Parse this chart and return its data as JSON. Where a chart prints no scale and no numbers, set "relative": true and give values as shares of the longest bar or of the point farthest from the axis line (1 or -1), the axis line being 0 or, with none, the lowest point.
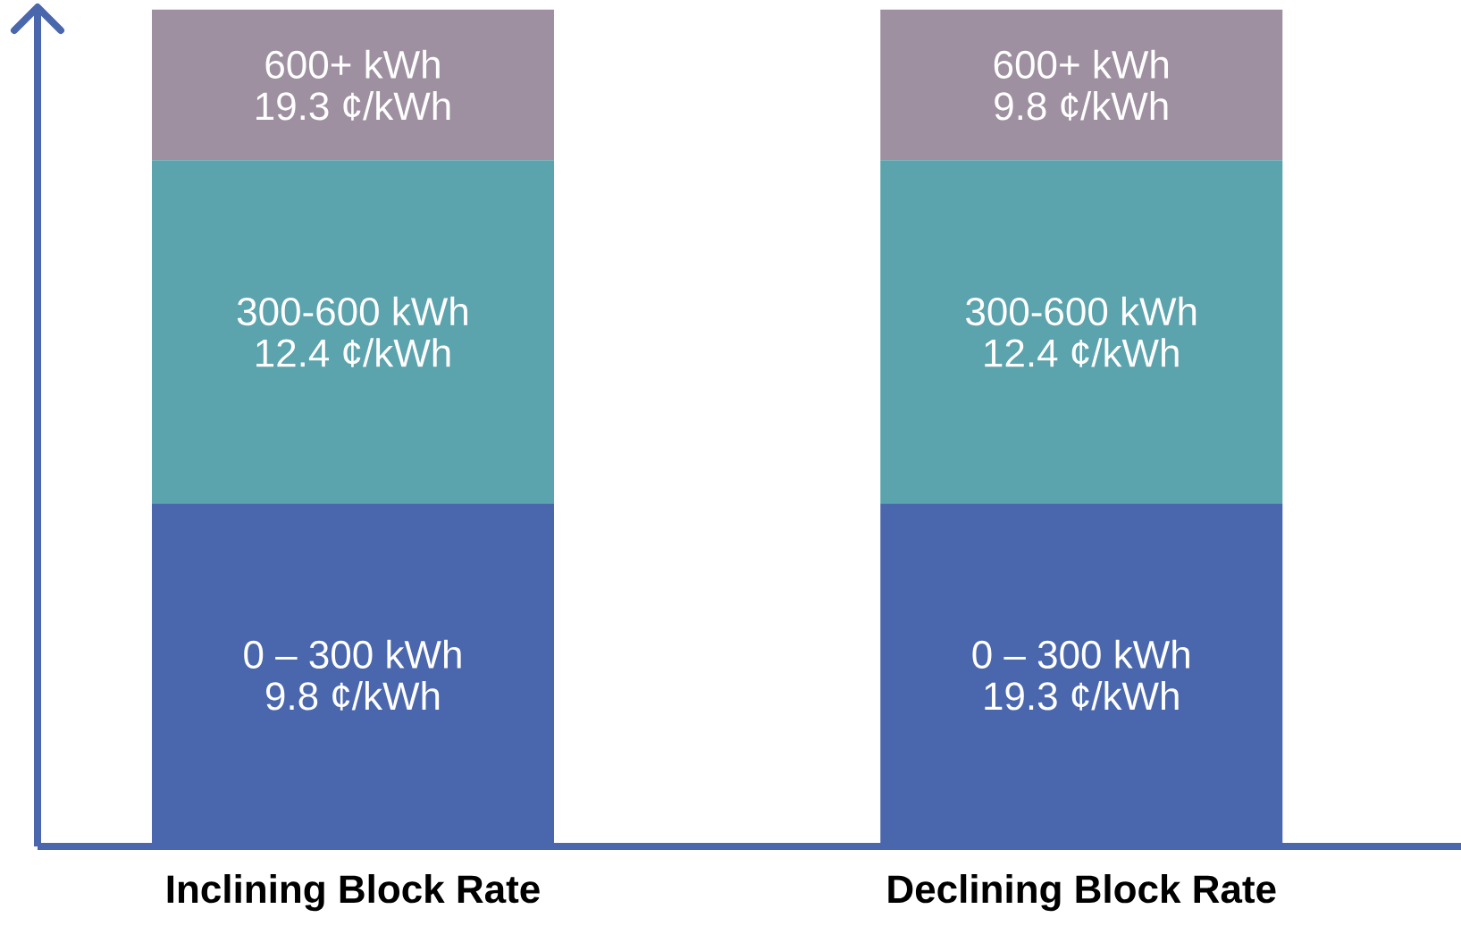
{
  "chart_data": {
    "type": "bar",
    "stacked": true,
    "relative": true,
    "categories": [
      "Inclining Block Rate",
      "Declining Block Rate"
    ],
    "series": [
      {
        "name": "0 – 300 kWh",
        "color": "#4a67ad",
        "values": [
          0.41,
          0.41
        ]
      },
      {
        "name": "300-600 kWh",
        "color": "#5ba3ad",
        "values": [
          0.41,
          0.41
        ]
      },
      {
        "name": "600+ kWh",
        "color": "#9e90a0",
        "values": [
          0.18,
          0.18
        ]
      }
    ],
    "annotations": [
      "9.8 ¢/kWh",
      "12.4 ¢/kWh",
      "19.3 ¢/kWh",
      "19.3 ¢/kWh",
      "12.4 ¢/kWh",
      "9.8 ¢/kWh"
    ]
  }
}
